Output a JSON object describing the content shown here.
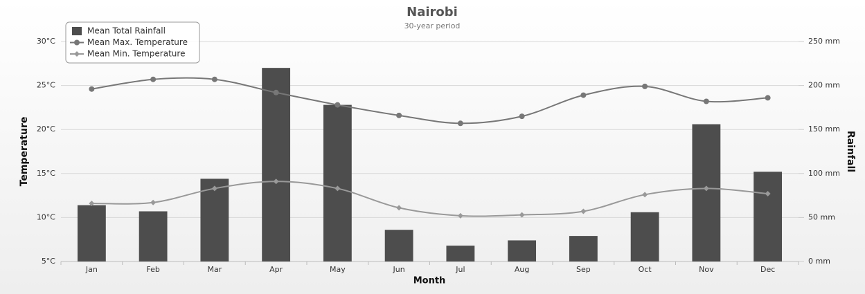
{
  "chart_data": {
    "type": "combo",
    "title": "Nairobi",
    "subtitle": "30-year period",
    "x_label": "Month",
    "y_label": "Temperature",
    "y2_label": "Rainfall",
    "categories": [
      "Jan",
      "Feb",
      "Mar",
      "Apr",
      "May",
      "Jun",
      "Jul",
      "Aug",
      "Sep",
      "Oct",
      "Nov",
      "Dec"
    ],
    "series": [
      {
        "name": "Mean Total Rainfall",
        "kind": "bar",
        "axis": "y2",
        "color": "#4d4d4d",
        "values": [
          64,
          57,
          94,
          220,
          178,
          36,
          18,
          24,
          29,
          56,
          156,
          102
        ]
      },
      {
        "name": "Mean Max. Temperature",
        "kind": "line",
        "marker": "circle",
        "color": "#777777",
        "values": [
          24.6,
          25.7,
          25.7,
          24.2,
          22.8,
          21.6,
          20.7,
          21.5,
          23.9,
          24.9,
          23.2,
          23.6
        ]
      },
      {
        "name": "Mean Min. Temperature",
        "kind": "line",
        "marker": "diamond",
        "color": "#999999",
        "values": [
          11.6,
          11.7,
          13.3,
          14.1,
          13.3,
          11.1,
          10.2,
          10.3,
          10.7,
          12.6,
          13.3,
          12.7
        ]
      }
    ],
    "ylim": [
      5,
      30
    ],
    "yticks": [
      {
        "value": 5,
        "label": "5°C"
      },
      {
        "value": 10,
        "label": "10°C"
      },
      {
        "value": 15,
        "label": "15°C"
      },
      {
        "value": 20,
        "label": "20°C"
      },
      {
        "value": 25,
        "label": "25°C"
      },
      {
        "value": 30,
        "label": "30°C"
      }
    ],
    "y2lim": [
      0,
      250
    ],
    "y2ticks": [
      {
        "value": 0,
        "label": "0 mm"
      },
      {
        "value": 50,
        "label": "50 mm"
      },
      {
        "value": 100,
        "label": "100 mm"
      },
      {
        "value": 150,
        "label": "150 mm"
      },
      {
        "value": 200,
        "label": "200 mm"
      },
      {
        "value": 250,
        "label": "250 mm"
      }
    ],
    "grid": true,
    "legend": "top-left"
  }
}
